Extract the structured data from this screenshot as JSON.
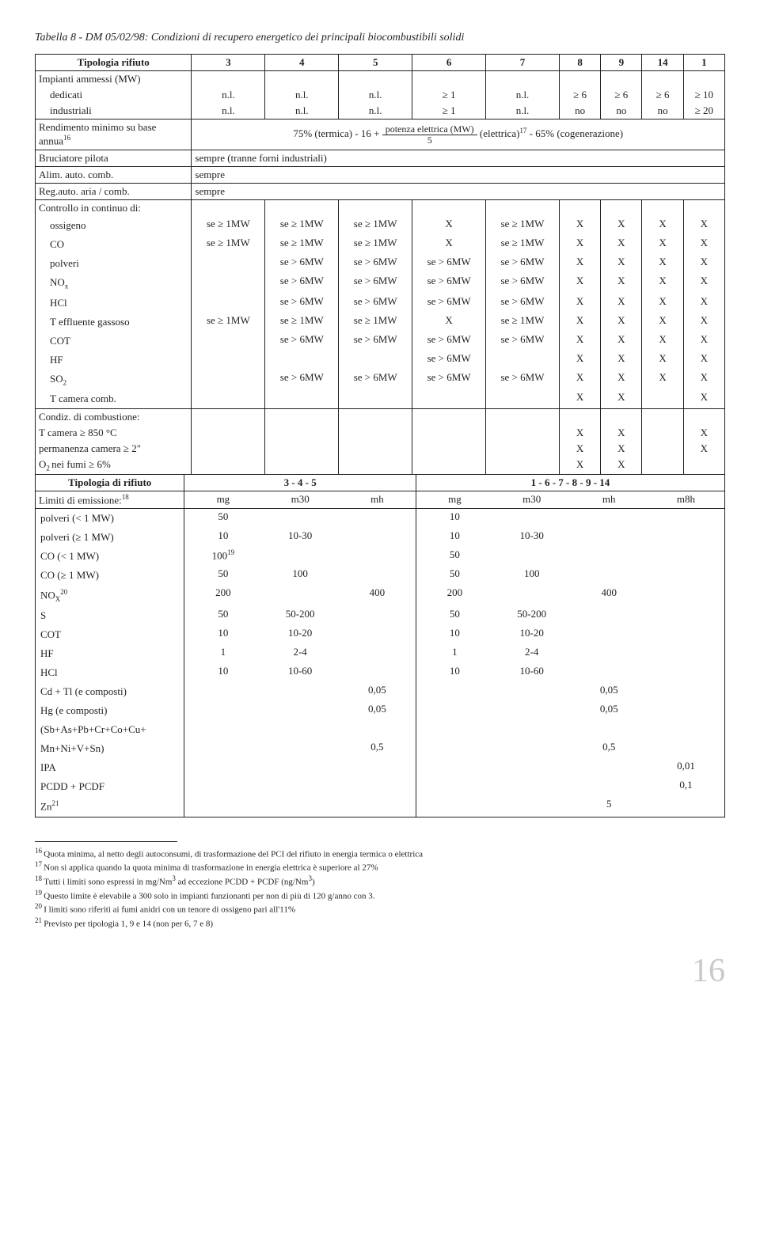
{
  "title": "Tabella 8 - DM 05/02/98: Condizioni di recupero energetico dei principali biocombustibili solidi",
  "hdr": {
    "c0": "Tipologia rifiuto",
    "c1": "3",
    "c2": "4",
    "c3": "5",
    "c4": "6",
    "c5": "7",
    "c6": "8",
    "c7": "9",
    "c8": "14",
    "c9": "1"
  },
  "impianti": {
    "label": "Impianti ammessi (MW)",
    "dedicati": "dedicati",
    "industriali": "industriali",
    "d": {
      "c1": "n.l.",
      "c2": "n.l.",
      "c3": "n.l.",
      "c4": "≥ 1",
      "c5": "n.l.",
      "c6": "≥ 6",
      "c7": "≥ 6",
      "c8": "≥ 6",
      "c9": "≥ 10"
    },
    "i": {
      "c1": "n.l.",
      "c2": "n.l.",
      "c3": "n.l.",
      "c4": "≥ 1",
      "c5": "n.l.",
      "c6": "no",
      "c7": "no",
      "c8": "no",
      "c9": "≥ 20"
    }
  },
  "rend": {
    "label": "Rendimento minimo su base annua",
    "fn": "16",
    "pre": "75% (termica) -  16 +",
    "num": "potenza elettrica (MW)",
    "den": "5",
    "post_a": "(elettrica)",
    "post_fn": "17",
    "post_b": " - 65% (cogenerazione)"
  },
  "bruc": {
    "label": "Bruciatore pilota",
    "val": "sempre (tranne forni industriali)"
  },
  "alim": {
    "label": "Alim. auto. comb.",
    "val": "sempre"
  },
  "reg": {
    "label": "Reg.auto. aria / comb.",
    "val": "sempre"
  },
  "cc": {
    "label": "Controllo in continuo di:",
    "ossigeno": {
      "label": "ossigeno",
      "c1": "se ≥ 1MW",
      "c2": "se ≥ 1MW",
      "c3": "se ≥ 1MW",
      "c4": "X",
      "c5": "se ≥ 1MW",
      "c6": "X",
      "c7": "X",
      "c8": "X",
      "c9": "X"
    },
    "co": {
      "label": "CO",
      "c1": "se ≥ 1MW",
      "c2": "se ≥ 1MW",
      "c3": "se ≥ 1MW",
      "c4": "X",
      "c5": "se ≥ 1MW",
      "c6": "X",
      "c7": "X",
      "c8": "X",
      "c9": "X"
    },
    "polveri": {
      "label": "polveri",
      "c2": "se > 6MW",
      "c3": "se > 6MW",
      "c4": "se > 6MW",
      "c5": "se > 6MW",
      "c6": "X",
      "c7": "X",
      "c8": "X",
      "c9": "X"
    },
    "nox": {
      "label": "NO",
      "sub": "x",
      "c2": "se > 6MW",
      "c3": "se > 6MW",
      "c4": "se > 6MW",
      "c5": "se > 6MW",
      "c6": "X",
      "c7": "X",
      "c8": "X",
      "c9": "X"
    },
    "hcl": {
      "label": "HCl",
      "c2": "se > 6MW",
      "c3": "se > 6MW",
      "c4": "se > 6MW",
      "c5": "se > 6MW",
      "c6": "X",
      "c7": "X",
      "c8": "X",
      "c9": "X"
    },
    "teff": {
      "label": "T effluente gassoso",
      "c1": "se ≥ 1MW",
      "c2": "se ≥ 1MW",
      "c3": "se ≥ 1MW",
      "c4": "X",
      "c5": "se ≥ 1MW",
      "c6": "X",
      "c7": "X",
      "c8": "X",
      "c9": "X"
    },
    "cot": {
      "label": "COT",
      "c2": "se > 6MW",
      "c3": "se > 6MW",
      "c4": "se > 6MW",
      "c5": "se > 6MW",
      "c6": "X",
      "c7": "X",
      "c8": "X",
      "c9": "X"
    },
    "hf": {
      "label": "HF",
      "c4": "se > 6MW",
      "c6": "X",
      "c7": "X",
      "c8": "X",
      "c9": "X"
    },
    "so2": {
      "label": "SO",
      "sub": "2",
      "c2": "se > 6MW",
      "c3": "se > 6MW",
      "c4": "se > 6MW",
      "c5": "se > 6MW",
      "c6": "X",
      "c7": "X",
      "c8": "X",
      "c9": "X"
    },
    "tcc": {
      "label": "T camera comb.",
      "c6": "X",
      "c7": "X",
      "c9": "X"
    }
  },
  "condiz": {
    "label": "Condiz. di combustione:",
    "tc": {
      "label": "T camera ≥ 850 °C",
      "c6": "X",
      "c7": "X",
      "c9": "X"
    },
    "perm": {
      "label": "permanenza camera ≥ 2\"",
      "c6": "X",
      "c7": "X",
      "c9": "X"
    },
    "o2": {
      "label_a": "O",
      "sub": "2 ",
      "label_b": "nei fumi ≥ 6%",
      "c6": "X",
      "c7": "X"
    }
  },
  "hdr2": {
    "c0": "Tipologia di rifiuto",
    "g1": "3 - 4 - 5",
    "g2": "1 - 6 - 7 - 8 - 9 - 14"
  },
  "limiti": {
    "label": "Limiti di emissione:",
    "fn": "18",
    "h": {
      "mg1": "mg",
      "m30a": "m30",
      "mh1": "mh",
      "mg2": "mg",
      "m30b": "m30",
      "mh2": "mh",
      "m8h": "m8h"
    }
  },
  "e": {
    "polv_lt": {
      "label": "polveri (< 1 MW)",
      "mg1": "50",
      "mg2": "10"
    },
    "polv_ge": {
      "label": "polveri (≥ 1 MW)",
      "mg1": "10",
      "m30a": "10-30",
      "mg2": "10",
      "m30b": "10-30"
    },
    "co_lt": {
      "label": "CO (< 1 MW)",
      "mg1": "100",
      "mg1_fn": "19",
      "mg2": "50"
    },
    "co_ge": {
      "label": "CO (≥ 1 MW)",
      "mg1": "50",
      "m30a": "100",
      "mg2": "50",
      "m30b": "100"
    },
    "nox": {
      "label": "NO",
      "sub": "X",
      "fn": "20",
      "mg1": "200",
      "mh1": "400",
      "mg2": "200",
      "mh2": "400"
    },
    "s": {
      "label": "S",
      "mg1": "50",
      "m30a": "50-200",
      "mg2": "50",
      "m30b": "50-200"
    },
    "cot": {
      "label": "COT",
      "mg1": "10",
      "m30a": "10-20",
      "mg2": "10",
      "m30b": "10-20"
    },
    "hf": {
      "label": "HF",
      "mg1": "1",
      "m30a": "2-4",
      "mg2": "1",
      "m30b": "2-4"
    },
    "hcl": {
      "label": "HCl",
      "mg1": "10",
      "m30a": "10-60",
      "mg2": "10",
      "m30b": "10-60"
    },
    "cdtl": {
      "label": "Cd + Tl (e composti)",
      "mh1": "0,05",
      "mh2": "0,05"
    },
    "hg": {
      "label": "Hg (e composti)",
      "mh1": "0,05",
      "mh2": "0,05"
    },
    "sb": {
      "label": "(Sb+As+Pb+Cr+Co+Cu+"
    },
    "mn": {
      "label": "Mn+Ni+V+Sn)",
      "mh1": "0,5",
      "mh2": "0,5"
    },
    "ipa": {
      "label": "IPA",
      "m8h": "0,01"
    },
    "pcdd": {
      "label": "PCDD + PCDF",
      "m8h": "0,1"
    },
    "zn": {
      "label": "Zn",
      "fn": "21",
      "mh2": "5"
    }
  },
  "fn": {
    "n16": "Quota minima, al netto degli autoconsumi, di trasformazione del PCI del rifiuto in energia termica o elettrica",
    "n17": "Non si applica quando la quota minima di trasformazione in energia elettrica è superiore al 27%",
    "n18_a": "Tutti i limiti sono espressi in mg/Nm",
    "n18_b": " ad eccezione PCDD + PCDF (ng/Nm",
    "n18_c": ")",
    "n19": "Questo limite è elevabile a 300 solo in impianti funzionanti per non di più di 120 g/anno con 3.",
    "n20": "I limiti sono riferiti ai fumi anidri con un tenore di ossigeno pari all'11%",
    "n21": "Previsto per tipologia 1, 9 e 14 (non per 6, 7 e 8)"
  },
  "pagenum": "16"
}
